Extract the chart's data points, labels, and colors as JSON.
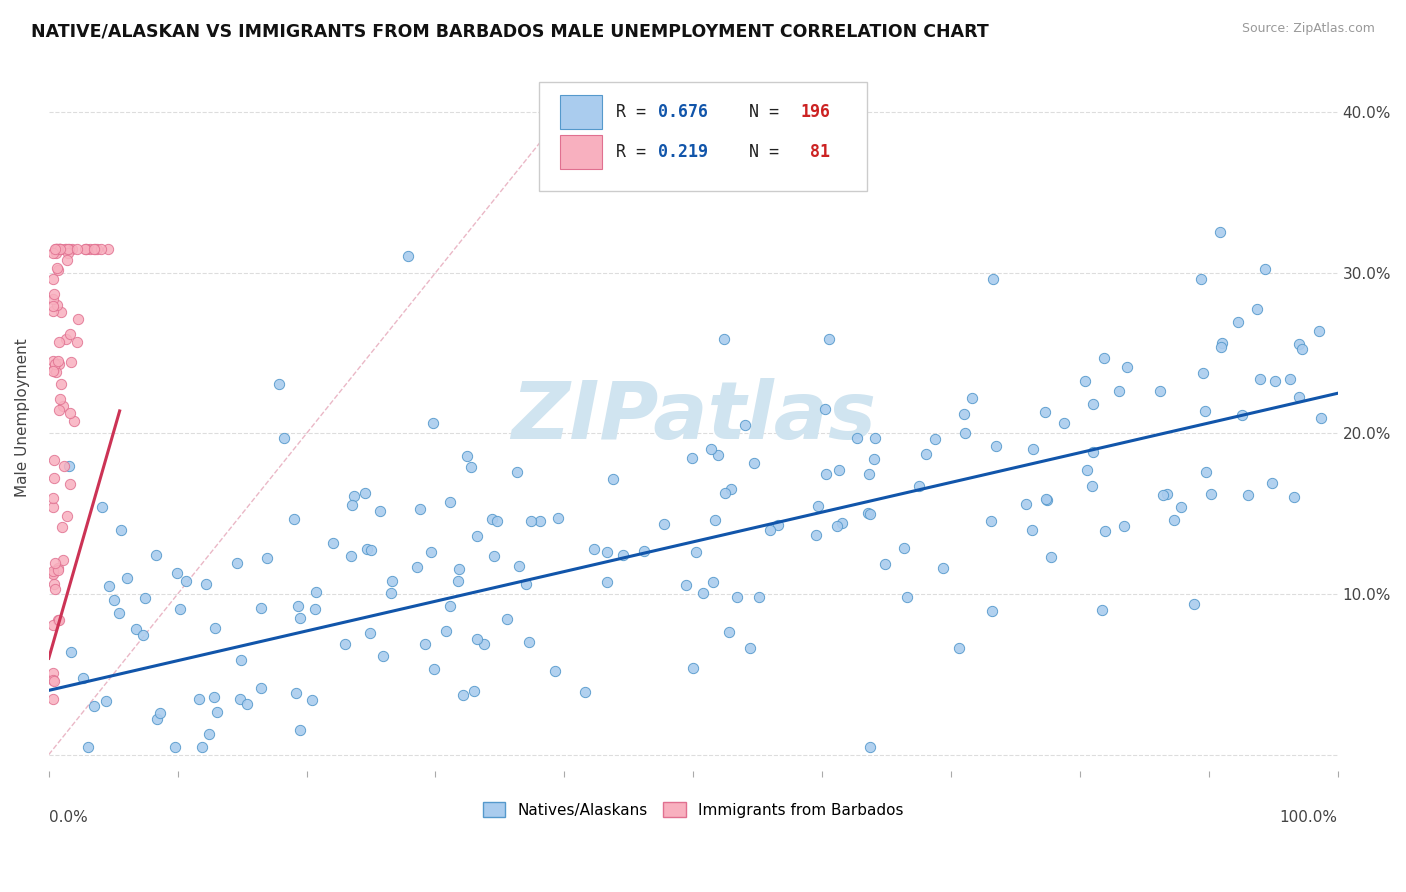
{
  "title": "NATIVE/ALASKAN VS IMMIGRANTS FROM BARBADOS MALE UNEMPLOYMENT CORRELATION CHART",
  "source": "Source: ZipAtlas.com",
  "ylabel": "Male Unemployment",
  "yticks": [
    "",
    "10.0%",
    "20.0%",
    "30.0%",
    "40.0%"
  ],
  "ytick_vals": [
    0,
    0.1,
    0.2,
    0.3,
    0.4
  ],
  "xlim": [
    0,
    1.0
  ],
  "ylim": [
    -0.01,
    0.43
  ],
  "blue_R": 0.676,
  "blue_N": 196,
  "pink_R": 0.219,
  "pink_N": 81,
  "blue_color": "#aaccee",
  "blue_edge": "#5599cc",
  "pink_color": "#f8b0bf",
  "pink_edge": "#e07090",
  "trend_blue": "#1155aa",
  "trend_pink": "#cc3355",
  "diagonal_color": "#e8b0c0",
  "watermark": "ZIPatlas",
  "watermark_color": "#d0e4f0",
  "background_color": "#ffffff",
  "grid_color": "#dddddd",
  "legend_text_color": "#1155aa",
  "legend_n_color": "#cc2222"
}
